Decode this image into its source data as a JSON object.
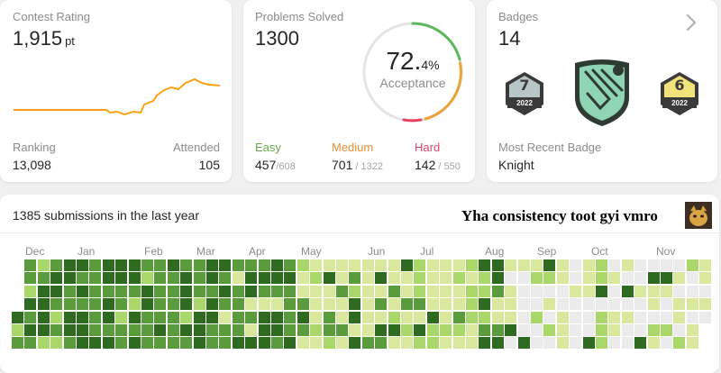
{
  "contest": {
    "title": "Contest Rating",
    "rating": "1,915",
    "unit": "pt",
    "ranking_label": "Ranking",
    "ranking": "13,098",
    "attended_label": "Attended",
    "attended": "105",
    "line_color": "#ffa116"
  },
  "problems": {
    "title": "Problems Solved",
    "solved": "1300",
    "acceptance_value": "72.",
    "acceptance_decimal": "4",
    "acceptance_pct": "%",
    "acceptance_label": "Acceptance",
    "easy": {
      "label": "Easy",
      "solved": "457",
      "total": "/608",
      "color": "#2cbb5d"
    },
    "medium": {
      "label": "Medium",
      "solved": "701",
      "total": "/ 1322",
      "color": "#ffb800"
    },
    "hard": {
      "label": "Hard",
      "solved": "142",
      "total": "/ 550",
      "color": "#ef4743"
    }
  },
  "badges": {
    "title": "Badges",
    "count": "14",
    "recent_label": "Most Recent Badge",
    "recent_name": "Knight",
    "items": [
      {
        "number": "7",
        "year": "2022"
      },
      {
        "number": "6",
        "year": "2022"
      }
    ],
    "chevron_icon": "chevron-right-icon"
  },
  "heatmap": {
    "title": "1385 submissions in the last year",
    "annotation": "Yha consistency toot gyi vmro",
    "months": [
      "Dec",
      "Jan",
      "Feb",
      "Mar",
      "Apr",
      "May",
      "Jun",
      "Jul",
      "Aug",
      "Sep",
      "Oct",
      "Nov"
    ],
    "colors": [
      "#ebebeb",
      "#d9e89c",
      "#a9d76a",
      "#5a9b3b",
      "#2e6b20"
    ]
  }
}
